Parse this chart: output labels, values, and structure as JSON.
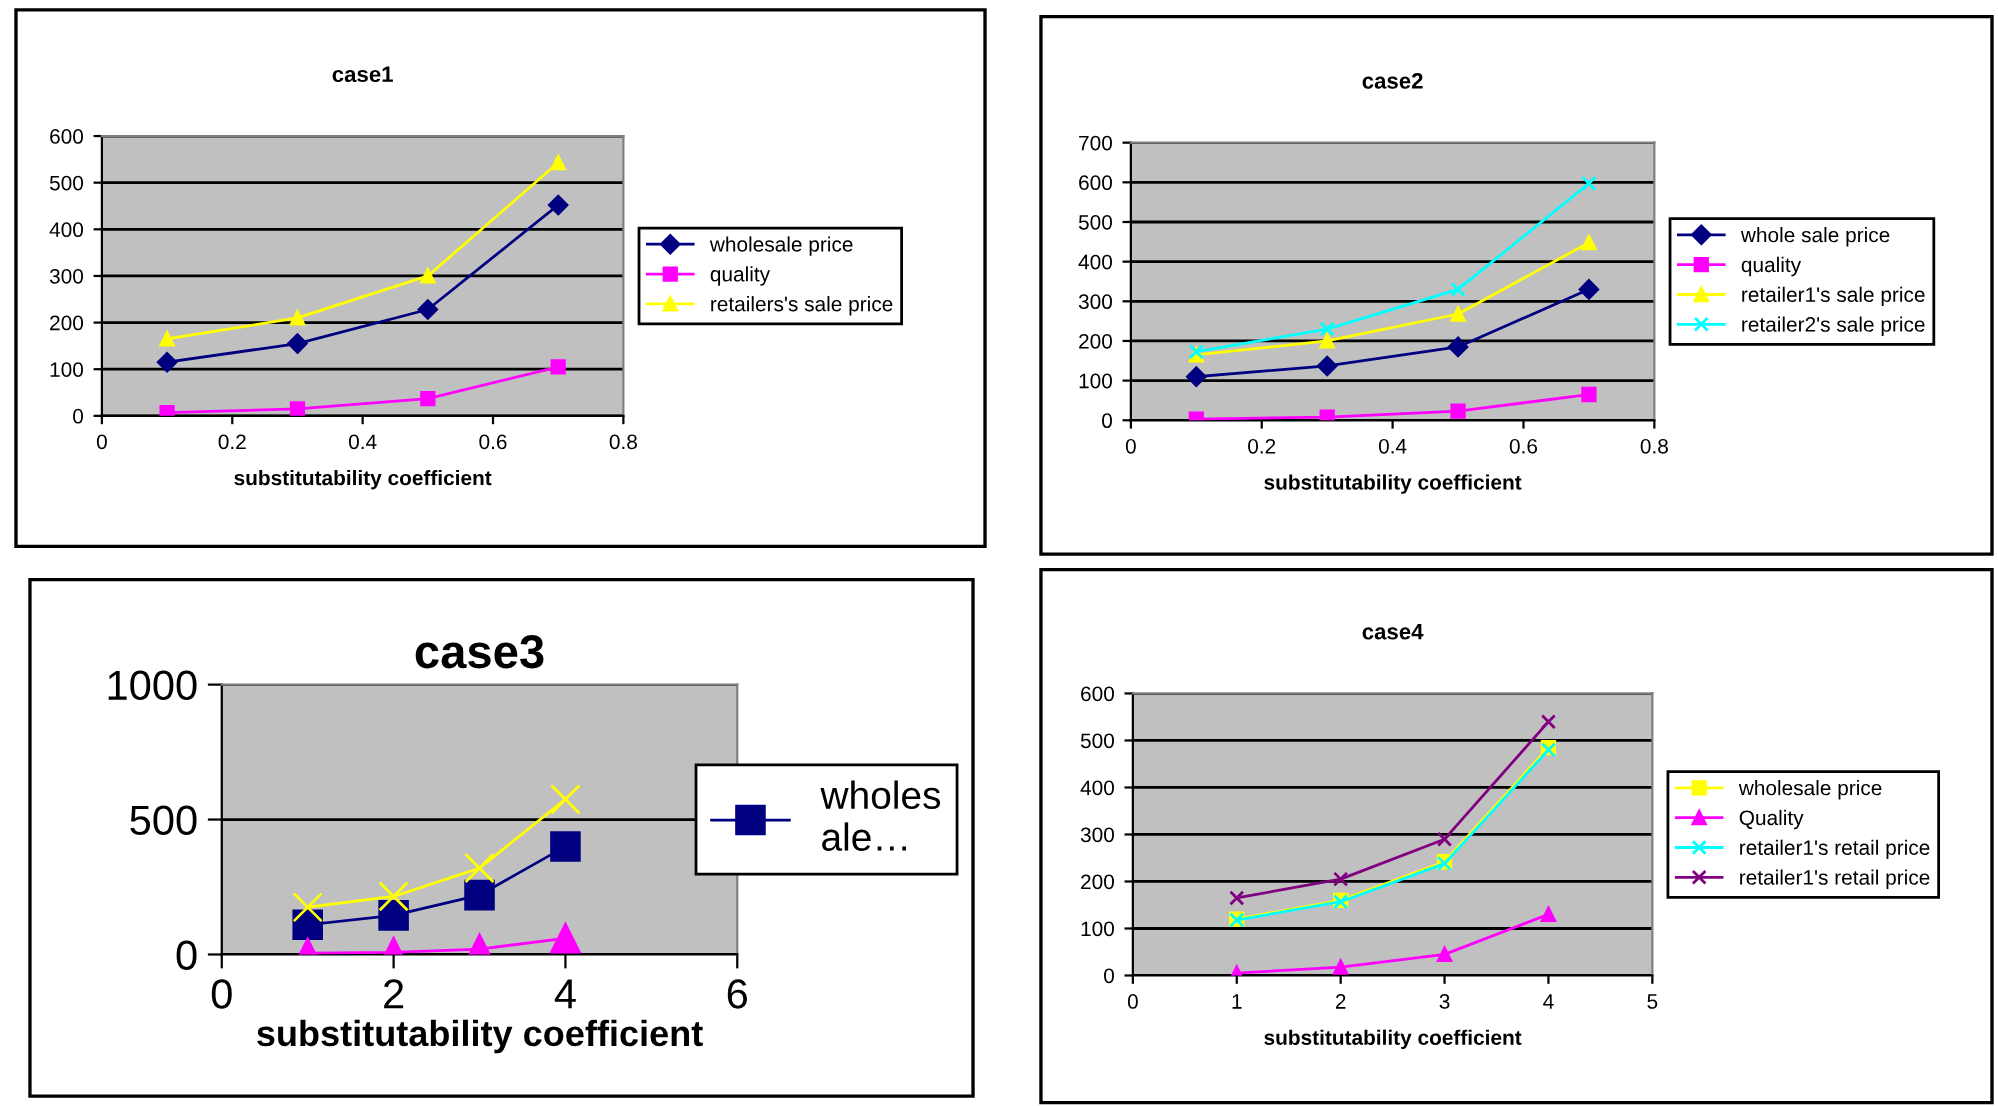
{
  "chart_data": [
    {
      "type": "line",
      "title": "case1",
      "xlabel": "substitutability coefficient",
      "x": [
        0.1,
        0.3,
        0.5,
        0.7
      ],
      "xlim": [
        0,
        0.8
      ],
      "xticks": [
        0,
        0.2,
        0.4,
        0.6,
        0.8
      ],
      "ylim": [
        0,
        600
      ],
      "yticks": [
        0,
        100,
        200,
        300,
        400,
        500,
        600
      ],
      "grid": "y",
      "legend": "right",
      "series": [
        {
          "name": "wholesale price",
          "color": "#000080",
          "marker": "diamond",
          "values": [
            115,
            155,
            228,
            452
          ]
        },
        {
          "name": "quality",
          "color": "#ff00ff",
          "marker": "square",
          "values": [
            7,
            15,
            37,
            105
          ]
        },
        {
          "name": "retailers's sale price",
          "color": "#ffff00",
          "marker": "triangle",
          "values": [
            165,
            210,
            300,
            543
          ]
        }
      ]
    },
    {
      "type": "line",
      "title": "case2",
      "xlabel": "substitutability coefficient",
      "x": [
        0.1,
        0.3,
        0.5,
        0.7
      ],
      "xlim": [
        0,
        0.8
      ],
      "xticks": [
        0,
        0.2,
        0.4,
        0.6,
        0.8
      ],
      "ylim": [
        0,
        700
      ],
      "yticks": [
        0,
        100,
        200,
        300,
        400,
        500,
        600,
        700
      ],
      "grid": "y",
      "legend": "right",
      "series": [
        {
          "name": "whole sale price",
          "color": "#000080",
          "marker": "diamond",
          "values": [
            110,
            137,
            185,
            330
          ]
        },
        {
          "name": "quality",
          "color": "#ff00ff",
          "marker": "square",
          "values": [
            3,
            8,
            23,
            65
          ]
        },
        {
          "name": "retailer1's sale price",
          "color": "#ffff00",
          "marker": "triangle",
          "values": [
            165,
            200,
            268,
            448
          ]
        },
        {
          "name": "retailer2's sale price",
          "color": "#00ffff",
          "marker": "cross",
          "values": [
            173,
            230,
            330,
            597
          ]
        }
      ]
    },
    {
      "type": "line",
      "title": "case3",
      "xlabel": "substitutability coefficient",
      "x": [
        1,
        2,
        3,
        4
      ],
      "xlim": [
        0,
        6
      ],
      "xticks": [
        0,
        2,
        4,
        6
      ],
      "ylim": [
        0,
        1000
      ],
      "yticks": [
        0,
        500,
        1000
      ],
      "grid": "y",
      "legend": "right",
      "series": [
        {
          "name": "wholes ale…",
          "color": "#000080",
          "marker": "square",
          "values": [
            110,
            145,
            220,
            400
          ]
        },
        {
          "color": "#ff00ff",
          "marker": "triangle",
          "values": [
            5,
            8,
            20,
            60
          ]
        },
        {
          "color": "#ffff00",
          "marker": "cross",
          "values": [
            175,
            215,
            320,
            575
          ]
        }
      ]
    },
    {
      "type": "line",
      "title": "case4",
      "xlabel": "substitutability coefficient",
      "x": [
        1,
        2,
        3,
        4
      ],
      "xlim": [
        0,
        5
      ],
      "xticks": [
        0,
        1,
        2,
        3,
        4,
        5
      ],
      "ylim": [
        0,
        600
      ],
      "yticks": [
        0,
        100,
        200,
        300,
        400,
        500,
        600
      ],
      "grid": "y",
      "legend": "right",
      "series": [
        {
          "name": "wholesale price",
          "color": "#ffff00",
          "marker": "square",
          "values": [
            120,
            160,
            242,
            485
          ]
        },
        {
          "name": "Quality",
          "color": "#ff00ff",
          "marker": "triangle",
          "values": [
            5,
            18,
            45,
            130
          ]
        },
        {
          "name": "retailer1's retail price",
          "color": "#00ffff",
          "marker": "cross",
          "values": [
            118,
            157,
            238,
            480
          ]
        },
        {
          "name": "retailer1's retail price",
          "color": "#800080",
          "marker": "cross",
          "values": [
            165,
            205,
            290,
            540
          ]
        }
      ]
    }
  ]
}
